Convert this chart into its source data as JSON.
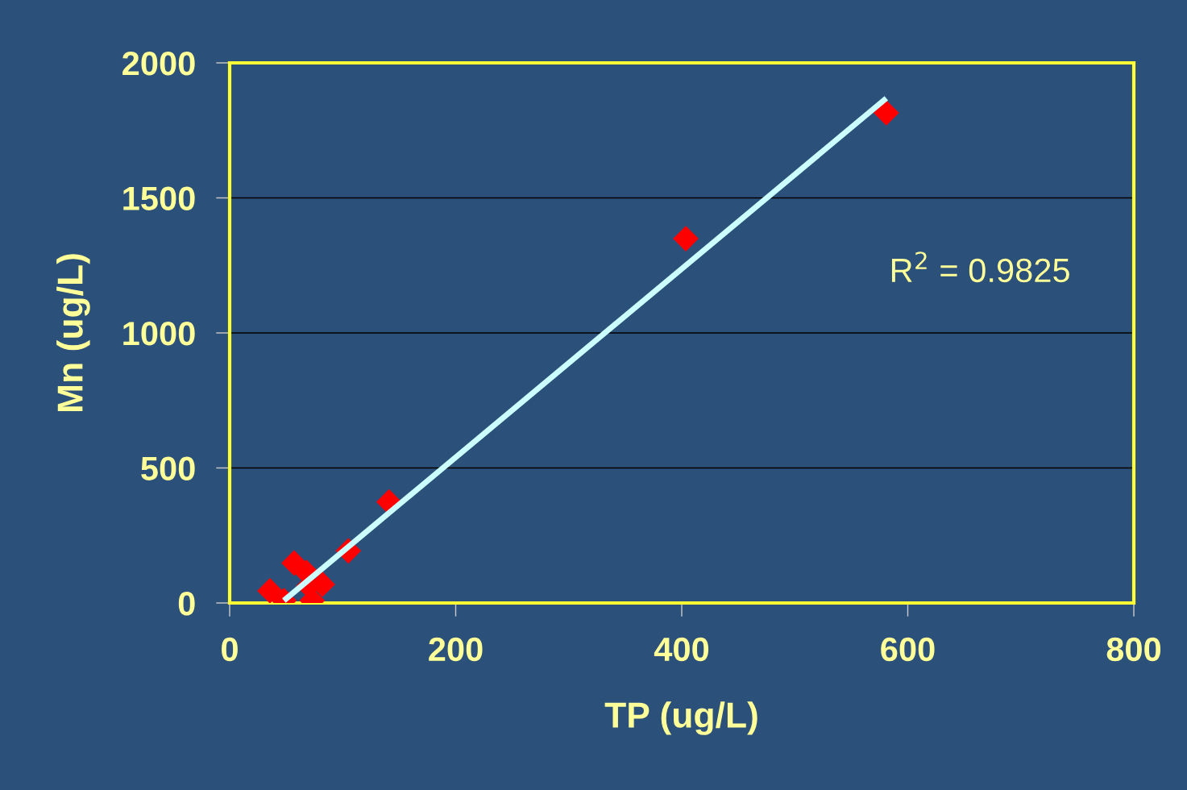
{
  "chart_data": {
    "type": "scatter",
    "xlabel": "TP (ug/L)",
    "ylabel": "Mn (ug/L)",
    "series": [
      {
        "color": "#ff0000",
        "marker": "diamond",
        "x": [
          35.6,
          48,
          57,
          68,
          70,
          73,
          82,
          105,
          141,
          403.6,
          581
        ],
        "values": [
          45,
          9,
          148,
          113,
          63,
          9,
          69,
          193,
          374,
          1349,
          1815
        ]
      },
      {
        "type": "line",
        "color": "#ccffff",
        "marker": "none",
        "line_style": "solid",
        "x": [
          48,
          581
        ],
        "values": [
          9,
          1869
        ]
      }
    ],
    "xlim": [
      0,
      800
    ],
    "xticks": [
      0,
      200,
      400,
      600,
      800
    ],
    "ylim": [
      0,
      2000
    ],
    "yticks": [
      0,
      500,
      1000,
      1500,
      2000
    ],
    "grid": "y",
    "legend": false,
    "annotations": [
      "R$^{2}$ = 0.9825"
    ]
  }
}
